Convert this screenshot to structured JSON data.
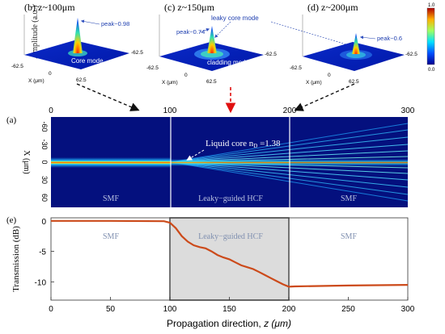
{
  "figure": {
    "panels_top": [
      {
        "label": "(b) z~100μm",
        "peak": "peak~0.98",
        "note": "Core mode"
      },
      {
        "label": "(c) z~150μm",
        "peak": "peak~0.74",
        "note": "cladding modes",
        "note2": "leaky core mode"
      },
      {
        "label": "(d) z~200μm",
        "peak": "peak~0.6"
      }
    ],
    "amplitude_label": "Amplitude (a.u.)",
    "axis_ticks_3d": {
      "neg": "-62.5",
      "pos": "62.5",
      "zero": "0",
      "xlabel": "X (μm)"
    },
    "colorbar": {
      "max": "1.0",
      "min": "0.0"
    },
    "panel_a": {
      "label": "(a)",
      "top_ticks": [
        "0",
        "100",
        "200",
        "300"
      ],
      "y_ticks": [
        "-60",
        "-30",
        "0",
        "30",
        "60"
      ],
      "ylabel": "X (μm)",
      "annotation": "Liquid core n",
      "annotation_sub": "D",
      "annotation_val": " =1.38",
      "region_labels": [
        "SMF",
        "Leaky−guided HCF",
        "SMF"
      ]
    },
    "panel_e": {
      "label": "(e)",
      "ylabel": "Transmission (dB)",
      "xlabel": "Propagation direction,",
      "xlabel_italic": " z (μm)",
      "region_labels": [
        "SMF",
        "Leaky−guided HCF",
        "SMF"
      ]
    }
  },
  "chart_data": {
    "type": "line",
    "x": [
      0,
      50,
      95,
      100,
      105,
      110,
      115,
      120,
      125,
      130,
      135,
      140,
      145,
      150,
      155,
      160,
      165,
      170,
      175,
      180,
      185,
      190,
      195,
      200,
      205,
      250,
      300
    ],
    "series": [
      {
        "values": [
          0,
          0,
          -0.05,
          -0.3,
          -1.2,
          -2.5,
          -3.4,
          -4.0,
          -4.3,
          -4.5,
          -5.0,
          -5.6,
          -6.0,
          -6.3,
          -6.8,
          -7.3,
          -7.6,
          -7.9,
          -8.4,
          -8.9,
          -9.4,
          -9.9,
          -10.4,
          -10.8,
          -10.75,
          -10.6,
          -10.5
        ]
      }
    ],
    "xlim": [
      0,
      300
    ],
    "ylim": [
      -13,
      0.5
    ],
    "xticks": [
      0,
      50,
      100,
      150,
      200,
      250,
      300
    ],
    "yticks": [
      0,
      -5,
      -10
    ],
    "shaded_region": [
      100,
      200
    ],
    "line_color": "#cc4a1a"
  }
}
